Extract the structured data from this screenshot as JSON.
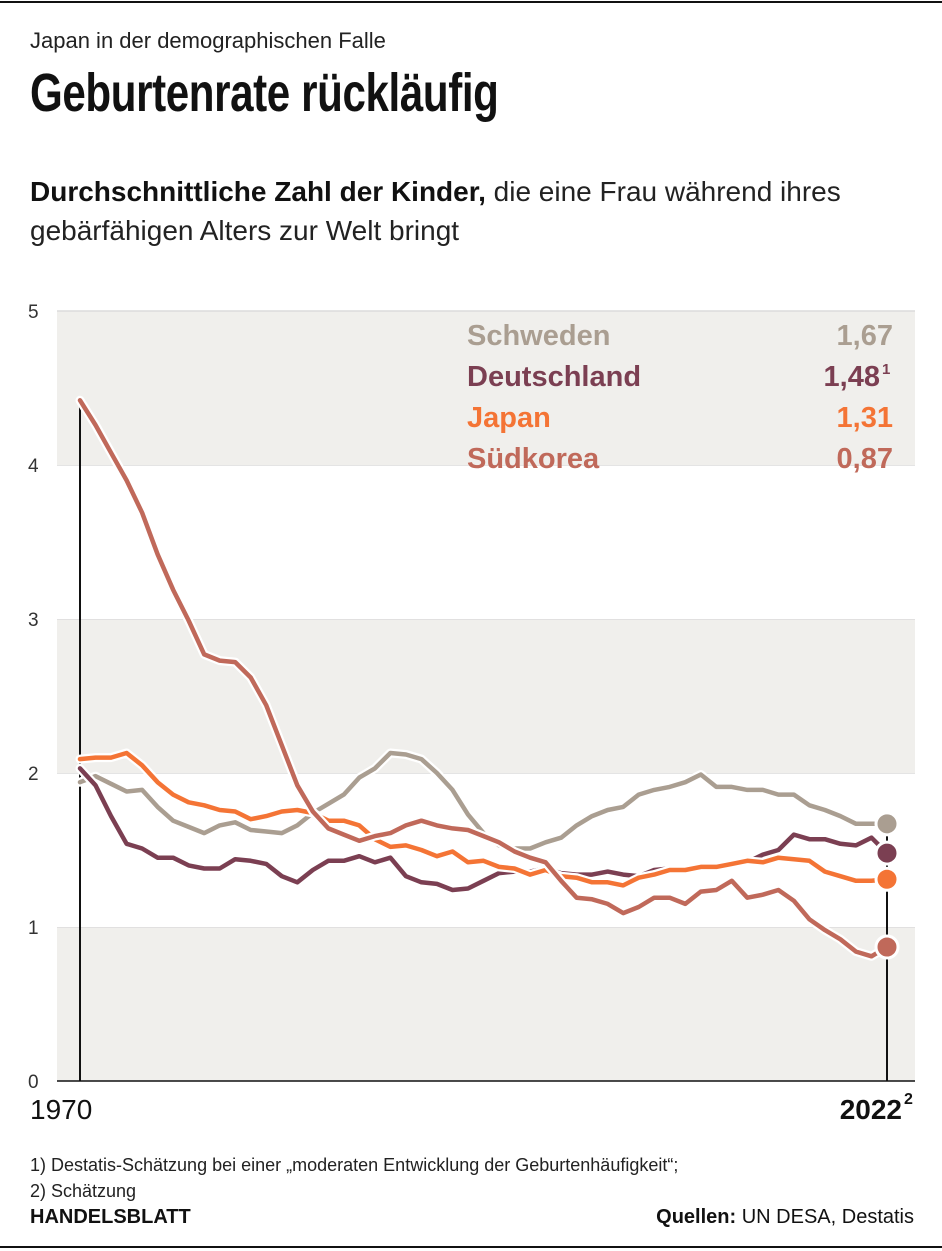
{
  "header": {
    "kicker": "Japan in der demographischen Falle",
    "title": "Geburtenrate rückläufig",
    "subtitle_bold": "Durchschnittliche Zahl der Kinder,",
    "subtitle_rest": " die eine Frau während ihres gebärfähigen Alters zur Welt bringt"
  },
  "chart_data": {
    "type": "line",
    "ylim": [
      0,
      5
    ],
    "yticks": [
      "0",
      "1",
      "2",
      "3",
      "4",
      "5"
    ],
    "xlim": [
      1970,
      2022
    ],
    "xtick_start": "1970",
    "xtick_end": "2022",
    "xtick_end_sup": "2",
    "grid": "alternating bands",
    "legend_placement": "top-right",
    "band_color": "#f0efec",
    "series": [
      {
        "name": "Schweden",
        "label_value": "1,67",
        "label_sup": "",
        "color": "#aa9e91",
        "values": [
          1.94,
          1.98,
          1.93,
          1.88,
          1.89,
          1.78,
          1.69,
          1.65,
          1.61,
          1.66,
          1.68,
          1.63,
          1.62,
          1.61,
          1.66,
          1.74,
          1.8,
          1.86,
          1.97,
          2.03,
          2.13,
          2.12,
          2.09,
          2.0,
          1.89,
          1.73,
          1.61,
          1.53,
          1.51,
          1.51,
          1.55,
          1.58,
          1.66,
          1.72,
          1.76,
          1.78,
          1.86,
          1.89,
          1.91,
          1.94,
          1.99,
          1.91,
          1.91,
          1.89,
          1.89,
          1.86,
          1.86,
          1.79,
          1.76,
          1.72,
          1.67,
          1.67,
          1.67
        ]
      },
      {
        "name": "Deutschland",
        "label_value": "1,48",
        "label_sup": "1",
        "color": "#7b3f52",
        "values": [
          2.03,
          1.92,
          1.72,
          1.54,
          1.51,
          1.45,
          1.45,
          1.4,
          1.38,
          1.38,
          1.44,
          1.43,
          1.41,
          1.33,
          1.29,
          1.37,
          1.43,
          1.43,
          1.46,
          1.42,
          1.45,
          1.33,
          1.29,
          1.28,
          1.24,
          1.25,
          1.3,
          1.35,
          1.36,
          1.36,
          1.38,
          1.35,
          1.34,
          1.34,
          1.36,
          1.34,
          1.33,
          1.37,
          1.38,
          1.36,
          1.39,
          1.39,
          1.41,
          1.42,
          1.47,
          1.5,
          1.6,
          1.57,
          1.57,
          1.54,
          1.53,
          1.58,
          1.48
        ]
      },
      {
        "name": "Japan",
        "label_value": "1,31",
        "label_sup": "",
        "color": "#f47435",
        "values": [
          2.09,
          2.1,
          2.1,
          2.13,
          2.05,
          1.94,
          1.86,
          1.81,
          1.79,
          1.76,
          1.75,
          1.7,
          1.72,
          1.75,
          1.76,
          1.74,
          1.69,
          1.69,
          1.66,
          1.57,
          1.52,
          1.53,
          1.5,
          1.46,
          1.49,
          1.42,
          1.43,
          1.39,
          1.38,
          1.34,
          1.37,
          1.33,
          1.32,
          1.29,
          1.29,
          1.27,
          1.32,
          1.34,
          1.37,
          1.37,
          1.39,
          1.39,
          1.41,
          1.43,
          1.42,
          1.45,
          1.44,
          1.43,
          1.36,
          1.33,
          1.3,
          1.3,
          1.31
        ]
      },
      {
        "name": "Südkorea",
        "label_value": "0,87",
        "label_sup": "",
        "color": "#c0695a",
        "values": [
          4.42,
          4.26,
          4.08,
          3.9,
          3.69,
          3.42,
          3.19,
          2.99,
          2.77,
          2.73,
          2.72,
          2.62,
          2.44,
          2.18,
          1.92,
          1.75,
          1.64,
          1.6,
          1.56,
          1.59,
          1.61,
          1.66,
          1.69,
          1.66,
          1.64,
          1.63,
          1.59,
          1.55,
          1.49,
          1.45,
          1.42,
          1.3,
          1.19,
          1.18,
          1.15,
          1.09,
          1.13,
          1.19,
          1.19,
          1.15,
          1.23,
          1.24,
          1.3,
          1.19,
          1.21,
          1.24,
          1.17,
          1.05,
          0.98,
          0.92,
          0.84,
          0.81,
          0.87
        ]
      }
    ]
  },
  "footnotes": [
    "1) Destatis-Schätzung bei einer „moderaten Entwicklung der Geburtenhäufigkeit“;",
    "2) Schätzung"
  ],
  "footer": {
    "brand": "HANDELSBLATT",
    "source_label": "Quellen:",
    "source_text": " UN DESA, Destatis"
  }
}
